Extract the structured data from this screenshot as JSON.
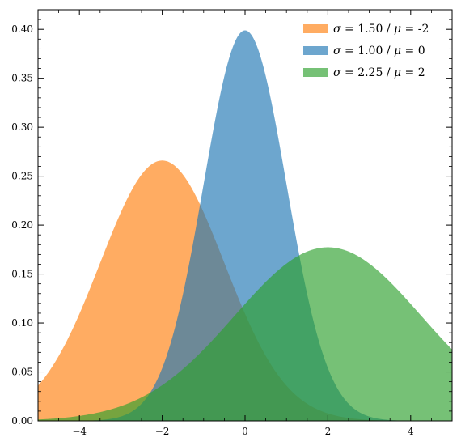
{
  "chart_data": {
    "type": "area",
    "title": "",
    "xlabel": "",
    "ylabel": "",
    "xlim": [
      -5,
      5
    ],
    "ylim": [
      0,
      0.42
    ],
    "x_ticks": [
      -4,
      -2,
      0,
      2,
      4
    ],
    "x_tick_labels": [
      "−4",
      "−2",
      "0",
      "2",
      "4"
    ],
    "y_ticks": [
      0.0,
      0.05,
      0.1,
      0.15,
      0.2,
      0.25,
      0.3,
      0.35,
      0.4
    ],
    "y_tick_labels": [
      "0.00",
      "0.05",
      "0.10",
      "0.15",
      "0.20",
      "0.25",
      "0.30",
      "0.35",
      "0.40"
    ],
    "grid": false,
    "legend_position": "top-right",
    "series": [
      {
        "name": "σ = 1.50 / μ = -2",
        "legend": {
          "symbol1": "σ",
          "mid": " = 1.50 / ",
          "symbol2": "μ",
          "tail": " = -2"
        },
        "color": "#ff7f0e",
        "opacity": 0.65,
        "sigma": 1.5,
        "mu": -2,
        "x": [
          -5,
          -4.5,
          -4,
          -3.5,
          -3,
          -2.5,
          -2,
          -1.5,
          -1,
          -0.5,
          0,
          0.5,
          1,
          1.5,
          2,
          2.5,
          3,
          3.5,
          4,
          4.5,
          5
        ],
        "y": [
          0.036,
          0.0665,
          0.1093,
          0.1613,
          0.213,
          0.2516,
          0.266,
          0.2516,
          0.213,
          0.1613,
          0.1093,
          0.0665,
          0.036,
          0.0174,
          0.0076,
          0.003,
          0.001,
          0.0003,
          0.0001,
          0.0,
          0.0
        ]
      },
      {
        "name": "σ = 1.00 / μ = 0",
        "legend": {
          "symbol1": "σ",
          "mid": " = 1.00 / ",
          "symbol2": "μ",
          "tail": " = 0"
        },
        "color": "#1f77b4",
        "opacity": 0.65,
        "sigma": 1.0,
        "mu": 0,
        "x": [
          -5,
          -4.5,
          -4,
          -3.5,
          -3,
          -2.5,
          -2,
          -1.5,
          -1,
          -0.5,
          0,
          0.5,
          1,
          1.5,
          2,
          2.5,
          3,
          3.5,
          4,
          4.5,
          5
        ],
        "y": [
          0.0,
          0.0,
          0.0001,
          0.0009,
          0.0044,
          0.0175,
          0.054,
          0.1295,
          0.242,
          0.3521,
          0.3989,
          0.3521,
          0.242,
          0.1295,
          0.054,
          0.0175,
          0.0044,
          0.0009,
          0.0001,
          0.0,
          0.0
        ]
      },
      {
        "name": "σ = 2.25 / μ = 2",
        "legend": {
          "symbol1": "σ",
          "mid": " = 2.25 / ",
          "symbol2": "μ",
          "tail": " = 2"
        },
        "color": "#2ca02c",
        "opacity": 0.65,
        "sigma": 2.25,
        "mu": 2,
        "x": [
          -5,
          -4.5,
          -4,
          -3.5,
          -3,
          -2.5,
          -2,
          -1.5,
          -1,
          -0.5,
          0,
          0.5,
          1,
          1.5,
          2,
          2.5,
          3,
          3.5,
          4,
          4.5,
          5
        ],
        "y": [
          0.0013,
          0.0027,
          0.0051,
          0.0089,
          0.0149,
          0.024,
          0.0366,
          0.0532,
          0.0728,
          0.0955,
          0.1187,
          0.1423,
          0.16,
          0.1742,
          0.1773,
          0.1742,
          0.16,
          0.1423,
          0.1187,
          0.0955,
          0.0728
        ]
      }
    ]
  }
}
